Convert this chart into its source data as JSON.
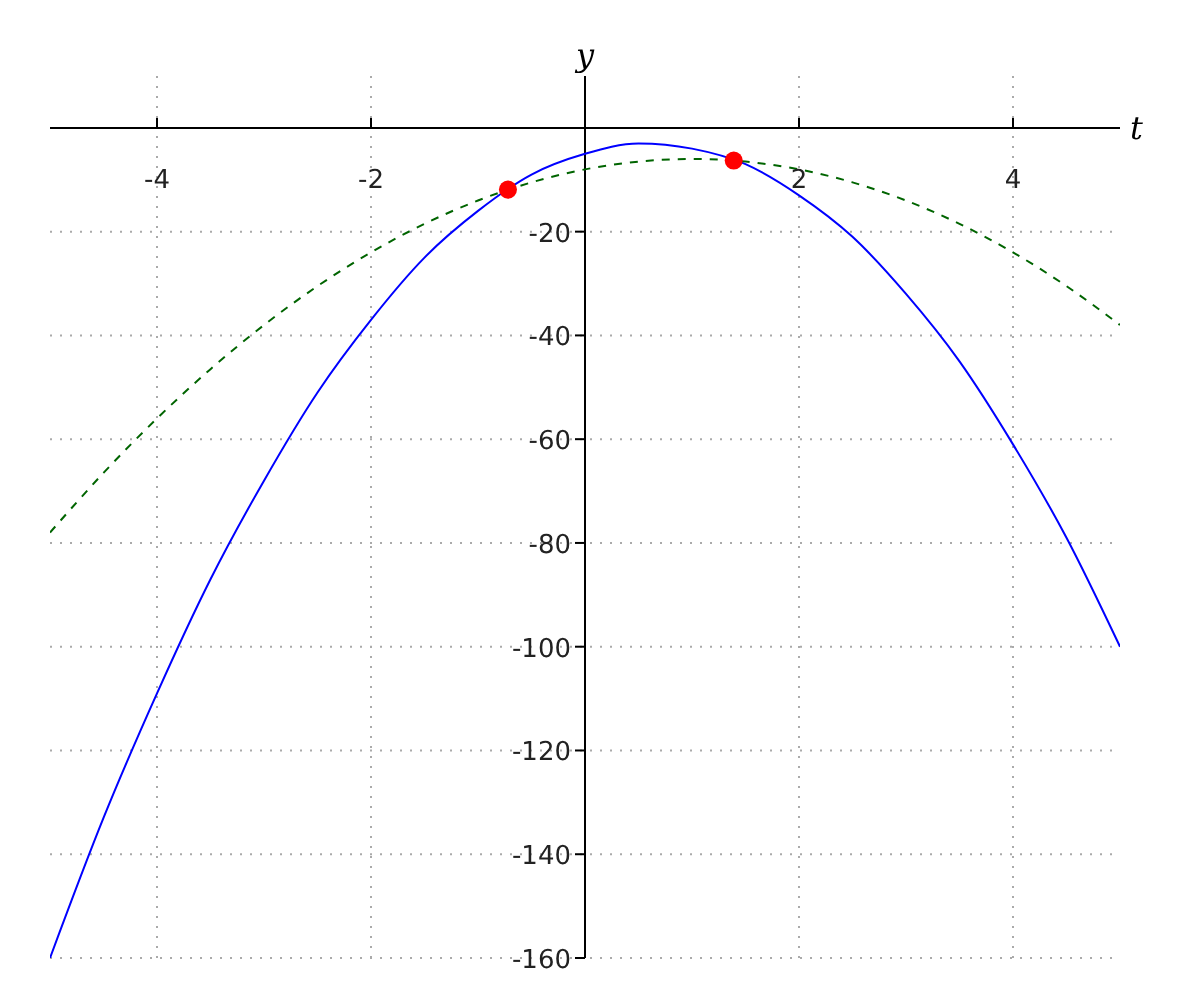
{
  "chart_data": {
    "type": "line",
    "xlabel": "t",
    "ylabel": "y",
    "x": [
      -5,
      -4.5,
      -4,
      -3.5,
      -3,
      -2.5,
      -2,
      -1.5,
      -1,
      -0.5,
      0,
      0.5,
      1,
      1.5,
      2,
      2.5,
      3,
      3.5,
      4,
      4.5,
      5
    ],
    "series": [
      {
        "color": "#0000ff",
        "line_style": "solid",
        "marker": "none",
        "values": [
          -160,
          -133,
          -109,
          -87,
          -68,
          -51,
          -37,
          -25,
          -16,
          -9,
          -5,
          -3,
          -4,
          -7,
          -13,
          -21,
          -32,
          -45,
          -61,
          -79,
          -100
        ]
      },
      {
        "color": "#006400",
        "line_style": "dashed",
        "marker": "none",
        "values": [
          -78,
          -66.5,
          -56,
          -46.5,
          -38,
          -30.5,
          -24,
          -18.5,
          -14,
          -10.5,
          -8,
          -6.5,
          -6,
          -6.5,
          -8,
          -10.5,
          -14,
          -18.5,
          -24,
          -30.5,
          -38
        ]
      },
      {
        "type": "scatter",
        "color": "#ff0000",
        "marker": "circle",
        "x": [
          -0.72,
          1.39
        ],
        "values": [
          -11.9,
          -6.3
        ]
      }
    ],
    "xlim": [
      -5,
      5
    ],
    "ylim": [
      -160,
      10
    ],
    "xticks": [
      -4,
      -2,
      2,
      4
    ],
    "yticks": [
      -160,
      -140,
      -120,
      -100,
      -80,
      -60,
      -40,
      -20
    ],
    "grid": true
  }
}
